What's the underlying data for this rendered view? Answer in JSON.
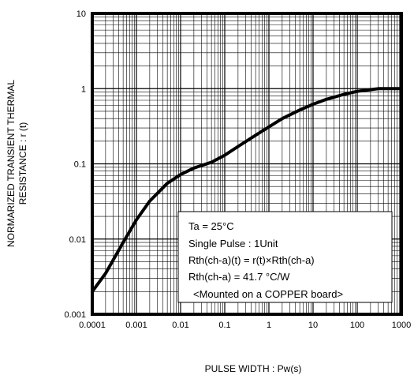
{
  "chart_data": {
    "type": "line",
    "title": "",
    "xlabel": "PULSE WIDTH : Pw(s)",
    "ylabel_lines": [
      "NORMARIZED TRANSIENT THERMAL",
      "RESISTANCE : r (t)"
    ],
    "x_scale": "log",
    "y_scale": "log",
    "xlim": [
      0.0001,
      1000
    ],
    "ylim": [
      0.001,
      10
    ],
    "x_ticks": [
      "0.0001",
      "0.001",
      "0.01",
      "0.1",
      "1",
      "10",
      "100",
      "1000"
    ],
    "y_ticks": [
      "0.001",
      "0.01",
      "0.1",
      "1",
      "10"
    ],
    "grid": true,
    "series": [
      {
        "x": [
          0.0001,
          0.0002,
          0.0005,
          0.001,
          0.002,
          0.005,
          0.01,
          0.02,
          0.05,
          0.1,
          0.2,
          0.5,
          1,
          2,
          5,
          10,
          20,
          50,
          100,
          200,
          300,
          500,
          1000
        ],
        "y": [
          0.002,
          0.0035,
          0.009,
          0.018,
          0.032,
          0.055,
          0.072,
          0.088,
          0.105,
          0.13,
          0.17,
          0.24,
          0.31,
          0.4,
          0.52,
          0.62,
          0.72,
          0.84,
          0.92,
          0.97,
          1.0,
          1.0,
          1.0
        ]
      }
    ],
    "annotation_lines": [
      "Ta = 25°C",
      "Single Pulse : 1Unit",
      "Rth(ch-a)(t) = r(t)×Rth(ch-a)",
      "Rth(ch-a) = 41.7 °C/W",
      "<Mounted on a COPPER board>"
    ]
  }
}
